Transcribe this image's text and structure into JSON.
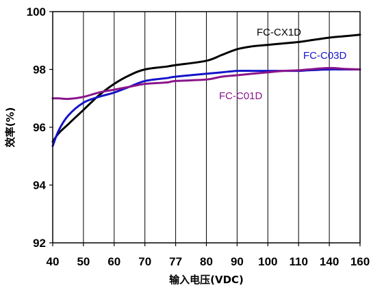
{
  "chart_data": {
    "type": "line",
    "xlabel": "输入电压(VDC)",
    "ylabel": "效率(%)",
    "categories": [
      "40",
      "50",
      "60",
      "70",
      "77",
      "80",
      "90",
      "100",
      "110",
      "140",
      "160"
    ],
    "ylim": [
      92,
      100
    ],
    "yticks": [
      "92",
      "94",
      "96",
      "98",
      "100"
    ],
    "grid": "vertical",
    "series": [
      {
        "name": "FC-CX1D",
        "color": "#000000",
        "x": [
          40,
          42,
          45,
          50,
          55,
          60,
          65,
          70,
          75,
          77,
          80,
          85,
          90,
          95,
          100,
          105,
          110,
          120,
          140,
          150,
          160
        ],
        "values": [
          95.5,
          95.8,
          96.1,
          96.6,
          97.1,
          97.5,
          97.8,
          98.0,
          98.1,
          98.15,
          98.3,
          98.5,
          98.7,
          98.8,
          98.85,
          98.9,
          98.95,
          99.0,
          99.1,
          99.15,
          99.2
        ]
      },
      {
        "name": "FC-C03D",
        "color": "#1414c8",
        "x": [
          40,
          42,
          45,
          50,
          55,
          60,
          65,
          70,
          75,
          77,
          80,
          85,
          90,
          95,
          100,
          105,
          110,
          120,
          140,
          150,
          160
        ],
        "values": [
          95.35,
          95.9,
          96.4,
          96.85,
          97.05,
          97.2,
          97.4,
          97.6,
          97.7,
          97.75,
          97.85,
          97.9,
          97.95,
          97.95,
          97.95,
          97.95,
          97.95,
          97.97,
          98.0,
          98.0,
          98.0
        ]
      },
      {
        "name": "FC-C01D",
        "color": "#8a158a",
        "x": [
          40,
          42,
          45,
          50,
          55,
          60,
          65,
          70,
          75,
          77,
          80,
          85,
          90,
          95,
          100,
          105,
          110,
          120,
          140,
          150,
          160
        ],
        "values": [
          97.0,
          97.0,
          96.98,
          97.05,
          97.2,
          97.3,
          97.4,
          97.5,
          97.55,
          97.6,
          97.65,
          97.75,
          97.8,
          97.85,
          97.9,
          97.95,
          97.97,
          98.0,
          98.05,
          98.02,
          98.0
        ]
      }
    ]
  }
}
